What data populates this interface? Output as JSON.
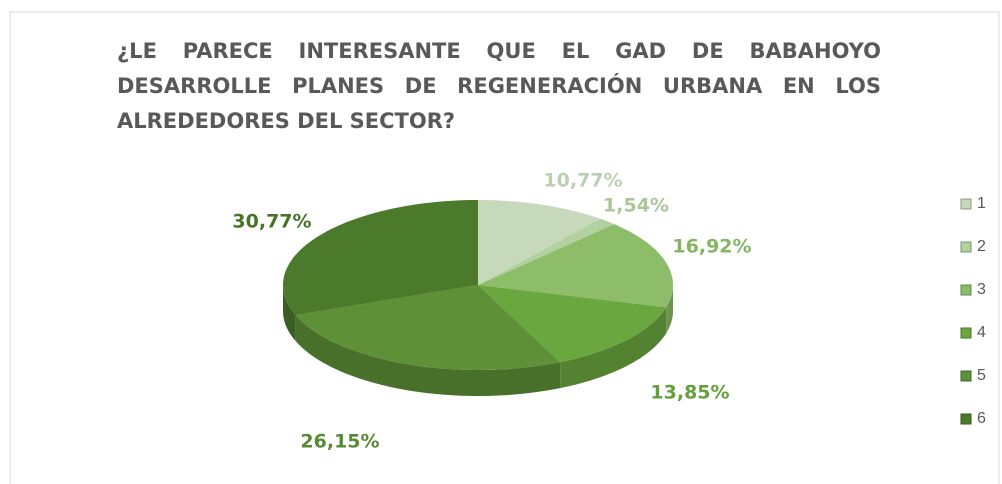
{
  "chart_data": {
    "type": "pie",
    "title": "¿LE PARECE INTERESANTE QUE EL GAD DE BABAHOYO DESARROLLE PLANES DE REGENERACIÓN URBANA EN LOS ALREDEDORES DEL SECTOR?",
    "categories": [
      "1",
      "2",
      "3",
      "4",
      "5",
      "6"
    ],
    "values": [
      10.77,
      1.54,
      16.92,
      13.85,
      26.15,
      30.77
    ],
    "value_labels": [
      "10,77%",
      "1,54%",
      "16,92%",
      "13,85%",
      "26,15%",
      "30,77%"
    ],
    "colors": [
      "#c6dabb",
      "#b3d1a0",
      "#8dbd68",
      "#6aa73f",
      "#5d9037",
      "#4b7a2b"
    ],
    "legend": "right"
  }
}
